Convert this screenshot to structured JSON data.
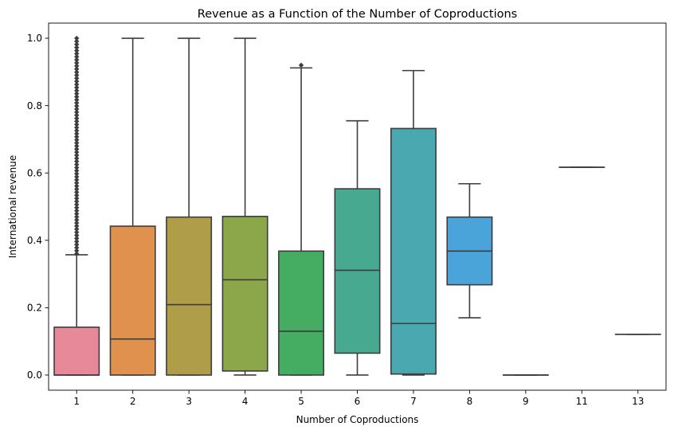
{
  "chart_data": {
    "type": "box",
    "title": "Revenue as a Function of the Number of Coproductions",
    "xlabel": "Number of Coproductions",
    "ylabel": "International revenue",
    "ylim": [
      -0.045,
      1.045
    ],
    "yticks": [
      0.0,
      0.2,
      0.4,
      0.6,
      0.8,
      1.0
    ],
    "ytick_labels": [
      "0.0",
      "0.2",
      "0.4",
      "0.6",
      "0.8",
      "1.0"
    ],
    "grid": false,
    "legend": "none",
    "categories": [
      "1",
      "2",
      "3",
      "4",
      "5",
      "6",
      "7",
      "8",
      "9",
      "11",
      "13"
    ],
    "boxes": [
      {
        "category": "1",
        "whisker_low": 0.0,
        "q1": 0.0,
        "median": 0.0,
        "q3": 0.142,
        "whisker_high": 0.357,
        "color": "#e8899a",
        "outliers_range": [
          0.36,
          1.0
        ]
      },
      {
        "category": "2",
        "whisker_low": 0.0,
        "q1": 0.0,
        "median": 0.107,
        "q3": 0.442,
        "whisker_high": 1.0,
        "color": "#e0914e"
      },
      {
        "category": "3",
        "whisker_low": 0.0,
        "q1": 0.0,
        "median": 0.209,
        "q3": 0.469,
        "whisker_high": 1.0,
        "color": "#b09d4a"
      },
      {
        "category": "4",
        "whisker_low": 0.0,
        "q1": 0.012,
        "median": 0.283,
        "q3": 0.471,
        "whisker_high": 1.0,
        "color": "#8ca64a"
      },
      {
        "category": "5",
        "whisker_low": 0.0,
        "q1": 0.0,
        "median": 0.13,
        "q3": 0.368,
        "whisker_high": 0.912,
        "color": "#45ad62",
        "outliers": [
          0.92
        ]
      },
      {
        "category": "6",
        "whisker_low": 0.0,
        "q1": 0.065,
        "median": 0.311,
        "q3": 0.553,
        "whisker_high": 0.755,
        "color": "#46a990"
      },
      {
        "category": "7",
        "whisker_low": 0.0,
        "q1": 0.003,
        "median": 0.153,
        "q3": 0.732,
        "whisker_high": 0.904,
        "color": "#49a8b0"
      },
      {
        "category": "8",
        "whisker_low": 0.17,
        "q1": 0.268,
        "median": 0.368,
        "q3": 0.469,
        "whisker_high": 0.568,
        "color": "#4aa4d9"
      },
      {
        "category": "9",
        "whisker_low": 0.0,
        "q1": 0.0,
        "median": 0.0,
        "q3": 0.0,
        "whisker_high": 0.0,
        "color": "#9da8e8"
      },
      {
        "category": "11",
        "whisker_low": 0.617,
        "q1": 0.617,
        "median": 0.617,
        "q3": 0.617,
        "whisker_high": 0.617,
        "color": "#c59ae8"
      },
      {
        "category": "13",
        "whisker_low": 0.121,
        "q1": 0.121,
        "median": 0.121,
        "q3": 0.121,
        "whisker_high": 0.121,
        "color": "#e88ad0"
      }
    ]
  }
}
